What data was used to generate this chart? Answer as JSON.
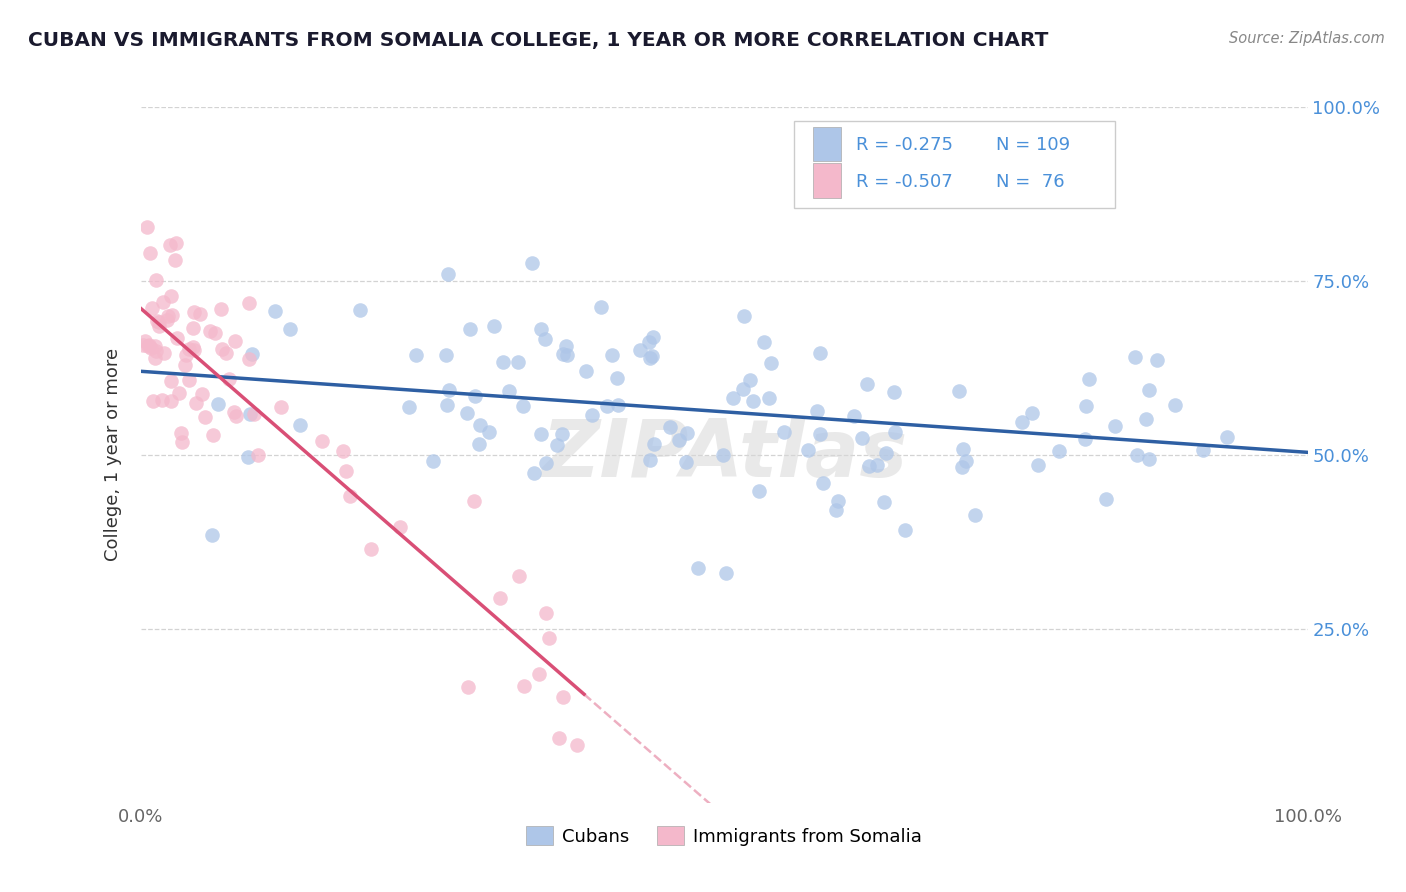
{
  "title": "CUBAN VS IMMIGRANTS FROM SOMALIA COLLEGE, 1 YEAR OR MORE CORRELATION CHART",
  "source": "Source: ZipAtlas.com",
  "ylabel": "College, 1 year or more",
  "xlim": [
    0.0,
    1.0
  ],
  "ylim": [
    0.0,
    1.0
  ],
  "x_tick_labels": [
    "0.0%",
    "100.0%"
  ],
  "y_tick_labels": [
    "25.0%",
    "50.0%",
    "75.0%",
    "100.0%"
  ],
  "y_tick_positions": [
    0.25,
    0.5,
    0.75,
    1.0
  ],
  "legend_r1": "-0.275",
  "legend_n1": "109",
  "legend_r2": "-0.507",
  "legend_n2": " 76",
  "color_cubans": "#aec6e8",
  "color_somalia": "#f4b8cb",
  "color_line_cubans": "#2e5fa3",
  "color_line_somalia": "#d94f76",
  "background": "#ffffff",
  "grid_color": "#c8c8c8",
  "watermark": "ZIPAtlas",
  "title_color": "#1a1a2e",
  "source_color": "#888888",
  "tick_color_blue": "#4a90d9",
  "tick_color_grey": "#666666"
}
